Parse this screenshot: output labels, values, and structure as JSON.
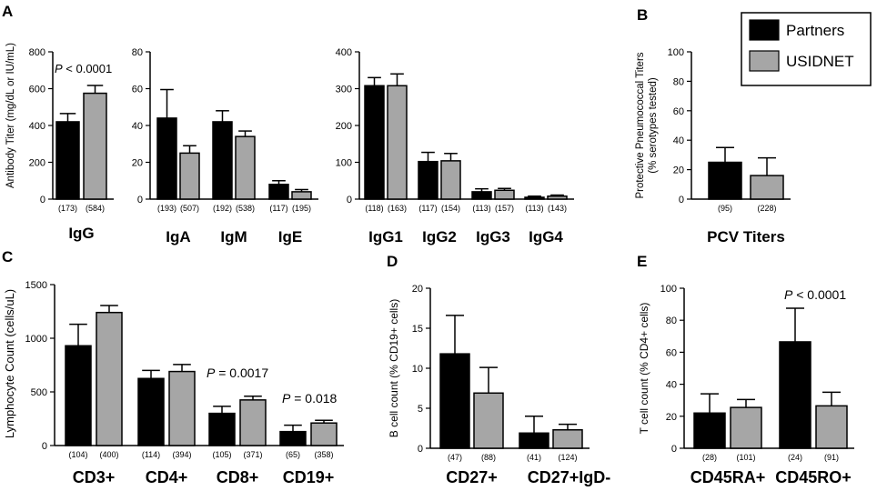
{
  "colors": {
    "partners": "#000000",
    "usidnet": "#a6a6a6",
    "axis": "#000000"
  },
  "legend": {
    "partners": "Partners",
    "usidnet": "USIDNET"
  },
  "chart_data": [
    {
      "id": "A1",
      "panel_letter": "A",
      "type": "bar",
      "ylabel": "Antibody Titer (mg/dL or IU/mL)",
      "ylim": [
        0,
        800
      ],
      "yticks": [
        0,
        200,
        400,
        600,
        800
      ],
      "groups": [
        {
          "label": "IgG",
          "values": [
            420,
            575
          ],
          "errors": [
            45,
            42
          ],
          "n": [
            "(173)",
            "(584)"
          ]
        }
      ],
      "annotations": [
        {
          "prefix": "P",
          "text": " < 0.0001"
        }
      ]
    },
    {
      "id": "A2",
      "type": "bar",
      "ylim": [
        0,
        80
      ],
      "yticks": [
        0,
        20,
        40,
        60,
        80
      ],
      "groups": [
        {
          "label": "IgA",
          "values": [
            44,
            25
          ],
          "errors": [
            15.5,
            4
          ],
          "n": [
            "(193)",
            "(507)"
          ]
        },
        {
          "label": "IgM",
          "values": [
            42,
            34
          ],
          "errors": [
            6,
            3
          ],
          "n": [
            "(192)",
            "(538)"
          ]
        },
        {
          "label": "IgE",
          "values": [
            8,
            4
          ],
          "errors": [
            2,
            1.2
          ],
          "n": [
            "(117)",
            "(195)"
          ]
        }
      ],
      "annotations": []
    },
    {
      "id": "A3",
      "type": "bar",
      "ylim": [
        0,
        400
      ],
      "yticks": [
        0,
        100,
        200,
        300,
        400
      ],
      "groups": [
        {
          "label": "IgG1",
          "values": [
            308,
            308
          ],
          "errors": [
            22,
            32
          ],
          "n": [
            "(118)",
            "(163)"
          ]
        },
        {
          "label": "IgG2",
          "values": [
            102,
            104
          ],
          "errors": [
            25,
            20
          ],
          "n": [
            "(117)",
            "(154)"
          ]
        },
        {
          "label": "IgG3",
          "values": [
            20,
            24
          ],
          "errors": [
            8,
            5
          ],
          "n": [
            "(113)",
            "(157)"
          ]
        },
        {
          "label": "IgG4",
          "values": [
            5,
            8
          ],
          "errors": [
            3,
            3
          ],
          "n": [
            "(113)",
            "(143)"
          ]
        }
      ],
      "annotations": []
    },
    {
      "id": "B",
      "panel_letter": "B",
      "type": "bar",
      "ylabel": "Protective Pneumococcal Titers",
      "ylabel2": "(% serotypes tested)",
      "ylim": [
        0,
        100
      ],
      "yticks": [
        0,
        20,
        40,
        60,
        80,
        100
      ],
      "groups": [
        {
          "label": "PCV Titers",
          "values": [
            25,
            16
          ],
          "errors": [
            10,
            12
          ],
          "n": [
            "(95)",
            "(228)"
          ]
        }
      ],
      "annotations": []
    },
    {
      "id": "C",
      "panel_letter": "C",
      "type": "bar",
      "ylabel": "Lymphocyte Count (cells/uL)",
      "ylim": [
        0,
        1500
      ],
      "yticks": [
        0,
        500,
        1000,
        1500
      ],
      "groups": [
        {
          "label": "CD3+",
          "values": [
            930,
            1240
          ],
          "errors": [
            200,
            65
          ],
          "n": [
            "(104)",
            "(400)"
          ]
        },
        {
          "label": "CD4+",
          "values": [
            625,
            690
          ],
          "errors": [
            75,
            65
          ],
          "n": [
            "(114)",
            "(394)"
          ]
        },
        {
          "label": "CD8+",
          "values": [
            300,
            425
          ],
          "errors": [
            65,
            35
          ],
          "n": [
            "(105)",
            "(371)"
          ]
        },
        {
          "label": "CD19+",
          "values": [
            130,
            210
          ],
          "errors": [
            60,
            25
          ],
          "n": [
            "(65)",
            "(358)"
          ]
        }
      ],
      "annotations": [
        {
          "prefix": "P",
          "text": " = 0.0017"
        },
        {
          "prefix": "P",
          "text": " = 0.018"
        }
      ]
    },
    {
      "id": "D",
      "panel_letter": "D",
      "type": "bar",
      "ylabel": "B cell count (% CD19+ cells)",
      "ylim": [
        0,
        20
      ],
      "yticks": [
        0,
        5,
        10,
        15,
        20
      ],
      "groups": [
        {
          "label": "CD27+",
          "values": [
            11.8,
            6.9
          ],
          "errors": [
            4.8,
            3.2
          ],
          "n": [
            "(47)",
            "(88)"
          ]
        },
        {
          "label": "CD27+IgD-",
          "values": [
            1.9,
            2.3
          ],
          "errors": [
            2.1,
            0.7
          ],
          "n": [
            "(41)",
            "(124)"
          ]
        }
      ],
      "annotations": []
    },
    {
      "id": "E",
      "panel_letter": "E",
      "type": "bar",
      "ylabel": "T cell count  (% CD4+ cells)",
      "ylim": [
        0,
        100
      ],
      "yticks": [
        0,
        20,
        40,
        60,
        80,
        100
      ],
      "groups": [
        {
          "label": "CD45RA+",
          "values": [
            22,
            25.5
          ],
          "errors": [
            12,
            5
          ],
          "n": [
            "(28)",
            "(101)"
          ]
        },
        {
          "label": "CD45RO+",
          "values": [
            66.5,
            26.5
          ],
          "errors": [
            21,
            8.5
          ],
          "n": [
            "(24)",
            "(91)"
          ]
        }
      ],
      "annotations": [
        {
          "prefix": "P",
          "text": " < 0.0001"
        }
      ]
    }
  ]
}
